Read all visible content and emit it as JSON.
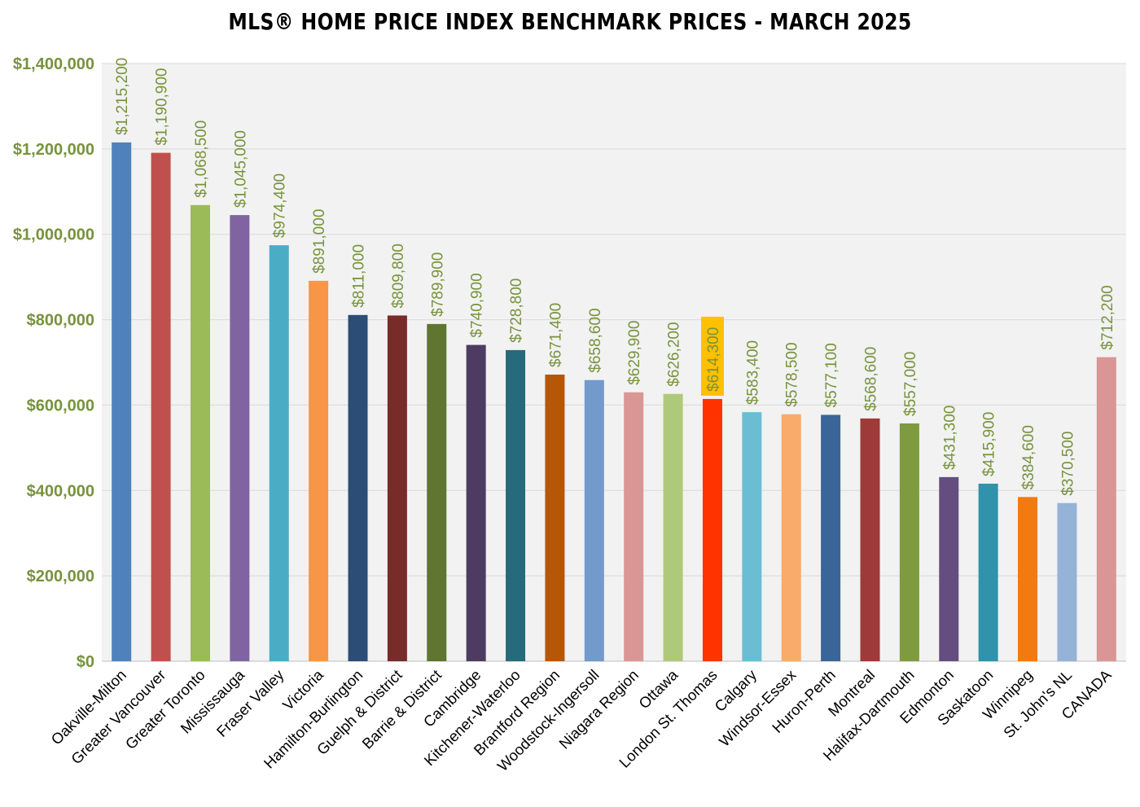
{
  "chart_data": {
    "type": "bar",
    "title": "MLS® HOME PRICE INDEX BENCHMARK PRICES - MARCH 2025",
    "xlabel": "",
    "ylabel": "",
    "ylim": [
      0,
      1400000
    ],
    "yticks": [
      0,
      200000,
      400000,
      600000,
      800000,
      1000000,
      1200000,
      1400000
    ],
    "ytick_labels": [
      "$0",
      "$200,000",
      "$400,000",
      "$600,000",
      "$800,000",
      "$1,000,000",
      "$1,200,000",
      "$1,400,000"
    ],
    "grid": true,
    "legend": "none",
    "categories": [
      "Oakville-Milton",
      "Greater Vancouver",
      "Greater Toronto",
      "Mississauga",
      "Fraser Valley",
      "Victoria",
      "Hamilton-Burlington",
      "Guelph & District",
      "Barrie & District",
      "Cambridge",
      "Kitchener-Waterloo",
      "Brantford Region",
      "Woodstock-Ingersoll",
      "Niagara Region",
      "Ottawa",
      "London St. Thomas",
      "Calgary",
      "Windsor-Essex",
      "Huron-Perth",
      "Montreal",
      "Halifax-Dartmouth",
      "Edmonton",
      "Saskatoon",
      "Winnipeg",
      "St. John's NL",
      "CANADA"
    ],
    "values": [
      1215200,
      1190900,
      1068500,
      1045000,
      974400,
      891000,
      811000,
      809800,
      789900,
      740900,
      728800,
      671400,
      658600,
      629900,
      626200,
      614300,
      583400,
      578500,
      577100,
      568600,
      557000,
      431300,
      415900,
      384600,
      370500,
      712200
    ],
    "data_labels": [
      "$1,215,200",
      "$1,190,900",
      "$1,068,500",
      "$1,045,000",
      "$974,400",
      "$891,000",
      "$811,000",
      "$809,800",
      "$789,900",
      "$740,900",
      "$728,800",
      "$671,400",
      "$658,600",
      "$629,900",
      "$626,200",
      "$614,300",
      "$583,400",
      "$578,500",
      "$577,100",
      "$568,600",
      "$557,000",
      "$431,300",
      "$415,900",
      "$384,600",
      "$370,500",
      "$712,200"
    ],
    "colors": [
      "#4f81bd",
      "#c0504d",
      "#9bbb59",
      "#8064a2",
      "#4bacc6",
      "#f79646",
      "#2c4d75",
      "#772c2a",
      "#5f7530",
      "#4d3b62",
      "#276a7c",
      "#b65708",
      "#729aca",
      "#d99694",
      "#afc97a",
      "#ff3300",
      "#6bbdd4",
      "#f9ab6b",
      "#3a6599",
      "#9e3b38",
      "#7e9b40",
      "#644e7f",
      "#3192ac",
      "#f27a10",
      "#95b3d7",
      "#d99694"
    ],
    "highlight_index": 15,
    "highlight_color": "#ffc000",
    "axis_label_color": "#77933c",
    "data_label_color": "#77933c",
    "plot_background": "#f2f2f2",
    "gridline_color": "#d9d9d9"
  }
}
